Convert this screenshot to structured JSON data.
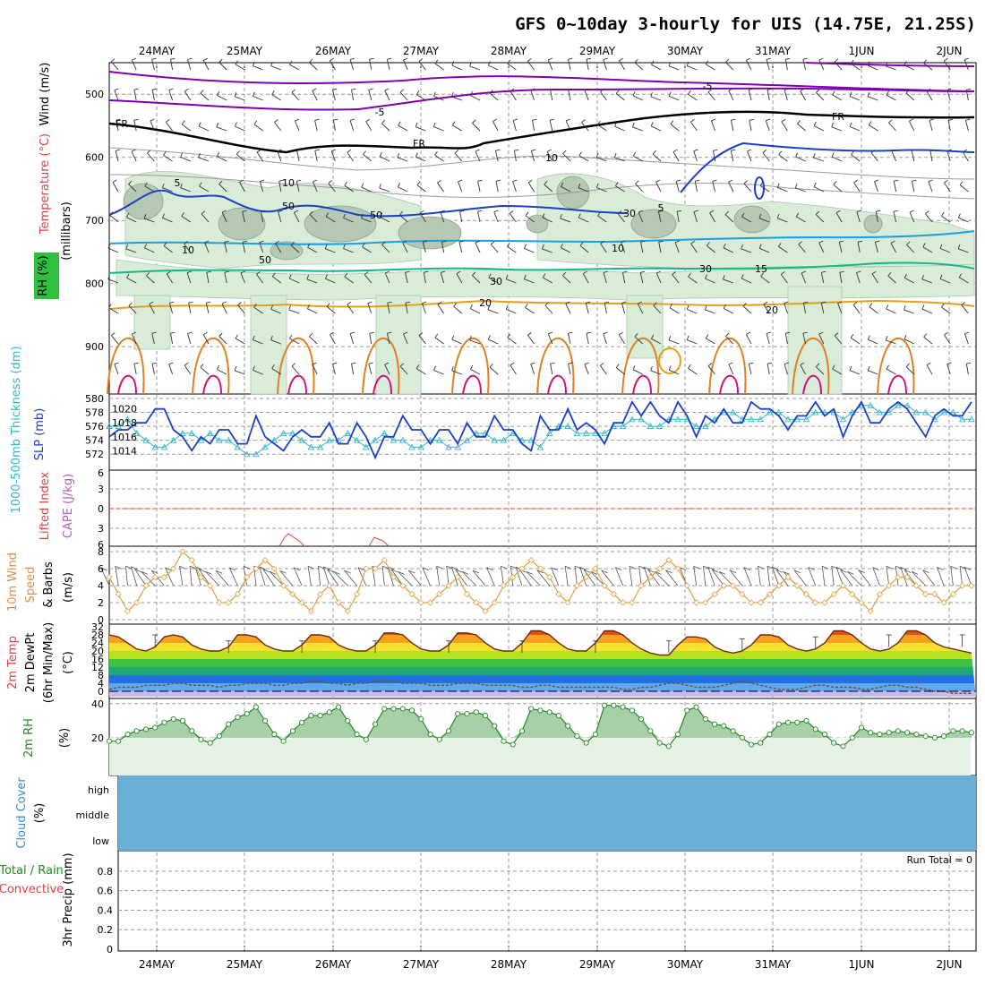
{
  "title": "GFS 0~10day 3-hourly for UIS (14.75E, 21.25S)",
  "dates": [
    "24MAY",
    "25MAY",
    "26MAY",
    "27MAY",
    "28MAY",
    "29MAY",
    "30MAY",
    "31MAY",
    "1JUN",
    "2JUN"
  ],
  "colors": {
    "wind_temp_fr": "#000000",
    "minus5": "#8000b0",
    "plus5": "#1a40c8",
    "plus10": "#1a9fe0",
    "plus15": "#12b888",
    "plus20": "#e0a020",
    "orange": "#e08020",
    "magenta": "#d01080",
    "rh_fill": "#d8ecd8",
    "slp": "#1a40c8",
    "thickness": "#30b8c8",
    "wind10": "#e0a040",
    "rh2m": "#208a20",
    "cloud": "#6baed6"
  },
  "panels": {
    "upper": {
      "ylabel_wind": "Wind (m/s)",
      "ylabel_temp": "Temperature (°C)",
      "ylabel_rh": "RH (%)",
      "ylabel_mb": "(millibars)",
      "ticks": [
        "500",
        "600",
        "700",
        "800",
        "900"
      ],
      "contour_labels": {
        "m5a": "-5",
        "m5b": "-5",
        "fr1": "FR",
        "fr2": "FR",
        "fr3": "FR",
        "p5a": "5",
        "p5b": "5",
        "p10a": "10",
        "p10b": "10",
        "p15": "15",
        "p20a": "20",
        "p20b": "20",
        "rh10a": "10",
        "rh10b": "10",
        "rh30a": "30",
        "rh30b": "30",
        "rh30c": "30",
        "rh50a": "50",
        "rh50b": "50",
        "rh50c": "50"
      }
    },
    "slp": {
      "ylabel_thk": "1000-500mb Thickness (dm)",
      "ylabel_slp": "SLP (mb)",
      "left_ticks": [
        "580",
        "578",
        "576",
        "574",
        "572"
      ],
      "right_ticks": [
        "1020",
        "1018",
        "1016",
        "1014"
      ]
    },
    "cape": {
      "ylabel_li": "Lifted Index",
      "ylabel_cape": "CAPE (J/kg)",
      "ticks": [
        "6",
        "3",
        "0",
        "3",
        "6"
      ]
    },
    "wind": {
      "ylabel_a": "10m Wind",
      "ylabel_b": "Speed",
      "ylabel_c": "& Barbs",
      "ylabel_d": "(m/s)",
      "ticks": [
        "8",
        "6",
        "4",
        "2",
        "0"
      ]
    },
    "temp": {
      "ylabel_a": "2m Temp",
      "ylabel_b": "2m DewPt",
      "ylabel_c": "(6hr Min/Max)",
      "ylabel_d": "(°C)",
      "ticks": [
        "32",
        "28",
        "24",
        "20",
        "16",
        "12",
        "8",
        "4",
        "0"
      ]
    },
    "rh": {
      "ylabel": "2m RH",
      "ylabel_unit": "(%)",
      "ticks": [
        "40",
        "20"
      ]
    },
    "cloud": {
      "ylabel": "Cloud Cover",
      "ylabel_unit": "(%)",
      "levels": [
        "high",
        "middle",
        "low"
      ]
    },
    "precip": {
      "ylabel_a": "Total / Rain",
      "ylabel_b": "Convective",
      "ylabel_c": "3hr Precip (mm)",
      "ticks": [
        "0.8",
        "0.6",
        "0.4",
        "0.2",
        "0"
      ],
      "run_total": "Run Total = 0"
    }
  },
  "chart_data": [
    {
      "type": "line",
      "title": "2m Temp / 2m DewPt (°C)",
      "series": [
        {
          "name": "2m Temp",
          "values": [
            28,
            27,
            24,
            21,
            20,
            22,
            27,
            28,
            27,
            23,
            21,
            20,
            20,
            22,
            28,
            28,
            27,
            23,
            21,
            20,
            20,
            23,
            28,
            28,
            27,
            23,
            21,
            20,
            20,
            23,
            29,
            29,
            28,
            24,
            21,
            20,
            20,
            23,
            29,
            29,
            28,
            24,
            21,
            20,
            20,
            24,
            30,
            30,
            28,
            24,
            21,
            20,
            20,
            24,
            30,
            30,
            28,
            24,
            21,
            19,
            18,
            18,
            23,
            27,
            27,
            26,
            22,
            20,
            19,
            20,
            23,
            28,
            28,
            27,
            23,
            21,
            20,
            21,
            24,
            30,
            30,
            28,
            24,
            21,
            20,
            21,
            24,
            30,
            30,
            28,
            24,
            22,
            21,
            20,
            19
          ]
        },
        {
          "name": "2m DewPt",
          "values": [
            1,
            2,
            2,
            2,
            3,
            3,
            3,
            4,
            4,
            3,
            3,
            3,
            2,
            3,
            3,
            4,
            4,
            4,
            3,
            3,
            4,
            4,
            5,
            5,
            4,
            4,
            3,
            4,
            4,
            5,
            5,
            5,
            4,
            4,
            4,
            3,
            3,
            3,
            4,
            4,
            4,
            3,
            3,
            3,
            3,
            2,
            2,
            3,
            3,
            2,
            2,
            2,
            2,
            2,
            2,
            2,
            1,
            1,
            2,
            2,
            3,
            4,
            4,
            3,
            2,
            2,
            2,
            3,
            4,
            5,
            4,
            3,
            2,
            1,
            1,
            1,
            2,
            3,
            3,
            2,
            2,
            2,
            1,
            1,
            2,
            3,
            3,
            2,
            2,
            1,
            0,
            0,
            -1,
            -1,
            -1
          ]
        }
      ],
      "ylim": [
        0,
        33
      ]
    },
    {
      "type": "line",
      "title": "SLP (mb) / 1000-500mb Thickness (dm)",
      "series": [
        {
          "name": "SLP",
          "values": [
            1016,
            1017,
            1017,
            1018,
            1018,
            1020,
            1020,
            1017,
            1016,
            1014,
            1016,
            1015,
            1017,
            1017,
            1015,
            1015,
            1019,
            1016,
            1015,
            1014,
            1016,
            1017,
            1016,
            1016,
            1018,
            1015,
            1015,
            1018,
            1016,
            1013,
            1016,
            1016,
            1019,
            1017,
            1017,
            1015,
            1017,
            1017,
            1015,
            1018,
            1016,
            1016,
            1019,
            1017,
            1017,
            1015,
            1014,
            1019,
            1017,
            1017,
            1020,
            1017,
            1018,
            1017,
            1015,
            1018,
            1018,
            1021,
            1019,
            1021,
            1019,
            1018,
            1021,
            1019,
            1016,
            1019,
            1018,
            1020,
            1018,
            1018,
            1021,
            1020,
            1020,
            1019,
            1017,
            1019,
            1019,
            1021,
            1019,
            1020,
            1016,
            1019,
            1021,
            1018,
            1018,
            1020,
            1021,
            1020,
            1018,
            1016,
            1019,
            1020,
            1019,
            1019,
            1021
          ]
        },
        {
          "name": "Thickness",
          "values": [
            576,
            576,
            577,
            575,
            574,
            573,
            573,
            574,
            575,
            575,
            574,
            575,
            574,
            574,
            573,
            572,
            572,
            573,
            574,
            575,
            575,
            574,
            573,
            573,
            574,
            574,
            575,
            574,
            573,
            574,
            575,
            574,
            574,
            573,
            573,
            574,
            574,
            573,
            573,
            574,
            575,
            575,
            574,
            574,
            575,
            574,
            574,
            573,
            575,
            576,
            576,
            575,
            575,
            575,
            575,
            576,
            576,
            577,
            577,
            576,
            576,
            577,
            577,
            577,
            576,
            576,
            577,
            578,
            578,
            577,
            577,
            577,
            578,
            578,
            577,
            577,
            577,
            578,
            578,
            578,
            577,
            578,
            579,
            579,
            578,
            578,
            579,
            579,
            578,
            578,
            577,
            578,
            578,
            577,
            577
          ]
        }
      ]
    },
    {
      "type": "line",
      "title": "2m RH (%)",
      "series": [
        {
          "name": "2m RH",
          "values": [
            18,
            18,
            22,
            24,
            25,
            26,
            29,
            31,
            30,
            24,
            19,
            17,
            21,
            28,
            32,
            34,
            38,
            30,
            22,
            18,
            24,
            29,
            33,
            33,
            35,
            38,
            30,
            22,
            19,
            28,
            37,
            37,
            37,
            36,
            31,
            22,
            19,
            24,
            34,
            34,
            35,
            33,
            27,
            18,
            16,
            24,
            37,
            36,
            35,
            33,
            27,
            21,
            17,
            22,
            39,
            39,
            38,
            36,
            31,
            24,
            17,
            15,
            22,
            36,
            38,
            31,
            28,
            27,
            24,
            20,
            16,
            17,
            22,
            28,
            29,
            29,
            30,
            25,
            22,
            17,
            15,
            20,
            26,
            23,
            22,
            23,
            24,
            23,
            22,
            21,
            20,
            21,
            24,
            24,
            23
          ]
        }
      ],
      "ylim": [
        0,
        42
      ]
    },
    {
      "type": "line",
      "title": "10m Wind Speed (m/s)",
      "series": [
        {
          "name": "10m Wind",
          "values": [
            5,
            3,
            1,
            2,
            4,
            5,
            5,
            6,
            8,
            7,
            5,
            4,
            2,
            2,
            3,
            5,
            6,
            7,
            6,
            4,
            3,
            2,
            1,
            3,
            4,
            2,
            1,
            3,
            6,
            6,
            7,
            5,
            4,
            3,
            2,
            2,
            3,
            4,
            5,
            3,
            2,
            1,
            2,
            4,
            5,
            6,
            7,
            6,
            5,
            3,
            2,
            4,
            5,
            6,
            4,
            3,
            2,
            2,
            4,
            5,
            6,
            7,
            6,
            4,
            2,
            2,
            3,
            4,
            4,
            3,
            2,
            2,
            3,
            4,
            5,
            4,
            3,
            2,
            2,
            3,
            4,
            3,
            2,
            1,
            3,
            4,
            5,
            5,
            4,
            3,
            3,
            2,
            3,
            4,
            4
          ]
        }
      ],
      "ylim": [
        0,
        8
      ]
    },
    {
      "type": "line",
      "title": "Lifted Index",
      "series": [
        {
          "name": "Lifted Index",
          "values": []
        }
      ],
      "ylim": [
        -6,
        6
      ]
    }
  ]
}
